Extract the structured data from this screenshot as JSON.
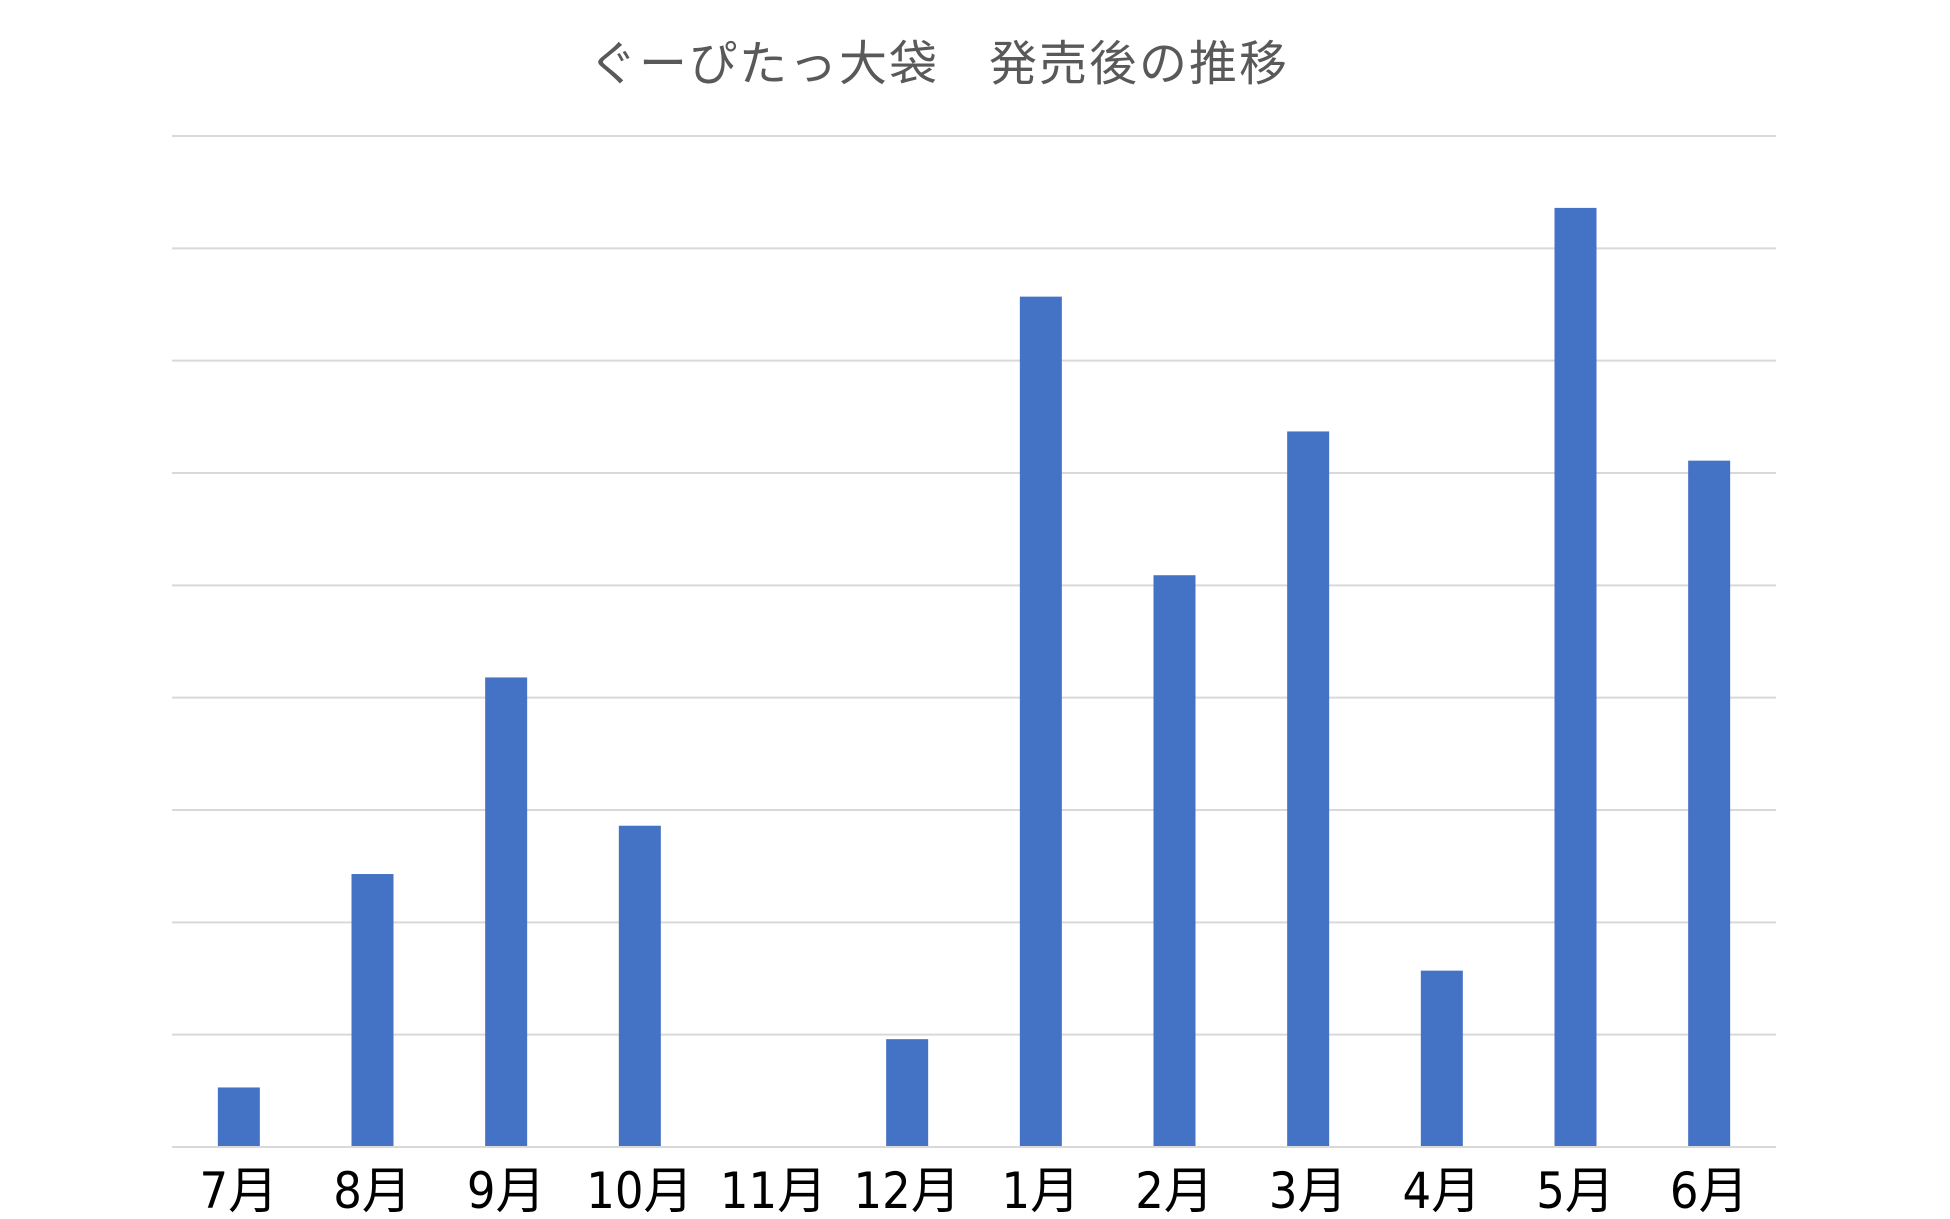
{
  "chart_data": {
    "type": "bar",
    "title": "ぐーぴたっ大袋　発売後の推移",
    "xlabel": "",
    "ylabel": "",
    "categories": [
      "7月",
      "8月",
      "9月",
      "10月",
      "11月",
      "12月",
      "1月",
      "2月",
      "3月",
      "4月",
      "5月",
      "6月"
    ],
    "values": [
      0.53,
      2.43,
      4.18,
      2.86,
      0,
      0.96,
      7.57,
      5.09,
      6.37,
      1.57,
      8.36,
      6.11
    ],
    "ylim": [
      0,
      9
    ],
    "grid": true,
    "colors": {
      "bar": "#4472c4",
      "grid": "#d9d9d9",
      "title": "#595959",
      "tick": "#000000"
    }
  }
}
